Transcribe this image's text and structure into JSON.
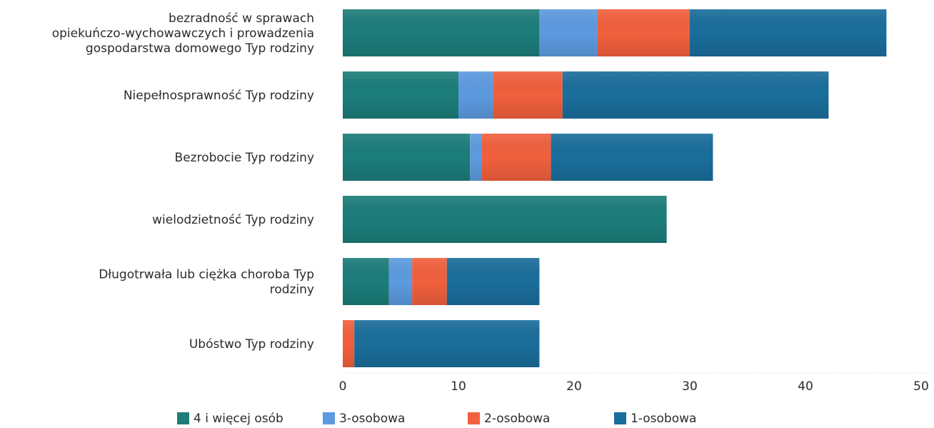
{
  "chart_data": {
    "type": "bar",
    "orientation": "horizontal",
    "stacked": true,
    "categories": [
      "bezradność w sprawach opiekuńczo-wychowawczych i prowadzenia gospodarstwa domowego Typ rodziny",
      "Niepełnosprawność Typ rodziny",
      "Bezrobocie Typ rodziny",
      "wielodzietność Typ rodziny",
      "Długotrwała lub ciężka choroba Typ rodziny",
      "Ubóstwo Typ rodziny"
    ],
    "category_lines": [
      [
        "bezradność w sprawach",
        "opiekuńczo-wychowawczych i prowadzenia",
        "gospodarstwa domowego Typ rodziny"
      ],
      [
        "Niepełnosprawność Typ rodziny"
      ],
      [
        "Bezrobocie Typ rodziny"
      ],
      [
        "wielodzietność Typ rodziny"
      ],
      [
        "Długotrwała lub ciężka choroba Typ",
        "rodziny"
      ],
      [
        "Ubóstwo Typ rodziny"
      ]
    ],
    "series": [
      {
        "name": "4  i więcej osób",
        "color": "#1c7d7a",
        "values": [
          17,
          10,
          11,
          28,
          4,
          0
        ]
      },
      {
        "name": "3-osobowa",
        "color": "#5d9be0",
        "values": [
          5,
          3,
          1,
          0,
          2,
          0
        ]
      },
      {
        "name": "2-osobowa",
        "color": "#f2603d",
        "values": [
          8,
          6,
          6,
          0,
          3,
          1
        ]
      },
      {
        "name": "1-osobowa",
        "color": "#1a6e9c",
        "values": [
          17,
          23,
          14,
          0,
          8,
          16
        ]
      }
    ],
    "xlim": [
      0,
      50
    ],
    "xticks": [
      "0",
      "10",
      "20",
      "30",
      "40",
      "50"
    ],
    "xlabel": "",
    "ylabel": "",
    "title": "",
    "grid": false,
    "legend_position": "bottom"
  }
}
